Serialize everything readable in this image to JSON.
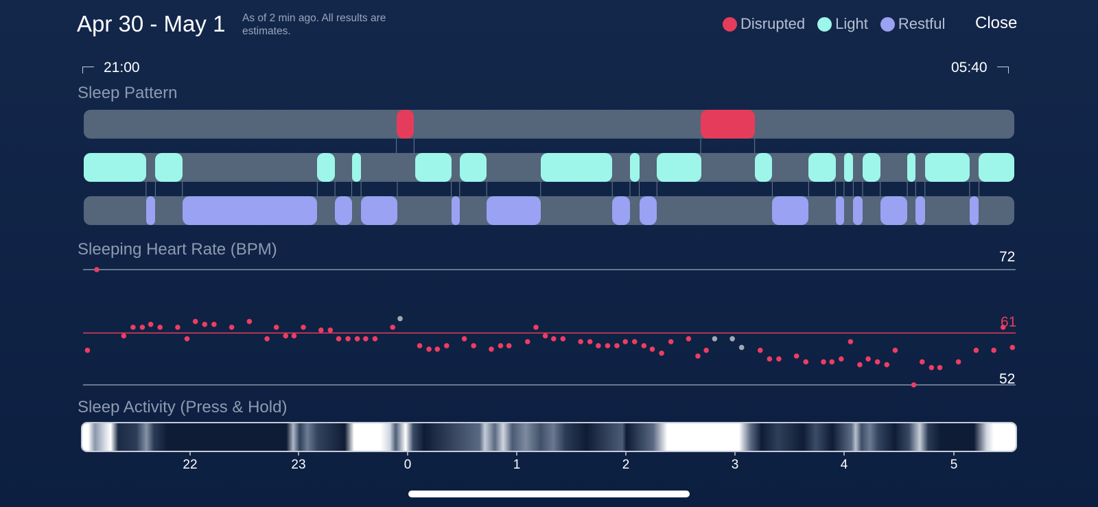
{
  "header": {
    "title": "Apr 30 - May 1",
    "subtitle": "As of 2 min ago. All results are estimates.",
    "close_label": "Close"
  },
  "legend": [
    {
      "label": "Disrupted",
      "color": "#e63c5b"
    },
    {
      "label": "Light",
      "color": "#9df6e9"
    },
    {
      "label": "Restful",
      "color": "#9aa2f3"
    }
  ],
  "timeline": {
    "start": "21:00",
    "end": "05:40"
  },
  "sections": {
    "sleep_pattern": "Sleep Pattern",
    "heart_rate": "Sleeping Heart Rate (BPM)",
    "activity": "Sleep Activity (Press & Hold)"
  },
  "heart_rate": {
    "max": "72",
    "avg": "61",
    "min": "52",
    "avg_color": "#e63c5b"
  },
  "x_axis_ticks": [
    "22",
    "23",
    "0",
    "1",
    "2",
    "3",
    "4",
    "5"
  ],
  "sleep_pattern": {
    "disrupted": [
      [
        0.336,
        0.355
      ],
      [
        0.663,
        0.721
      ]
    ],
    "light": [
      [
        0.0,
        0.067
      ],
      [
        0.077,
        0.106
      ],
      [
        0.251,
        0.27
      ],
      [
        0.288,
        0.298
      ],
      [
        0.356,
        0.395
      ],
      [
        0.404,
        0.433
      ],
      [
        0.491,
        0.568
      ],
      [
        0.587,
        0.597
      ],
      [
        0.616,
        0.664
      ],
      [
        0.721,
        0.74
      ],
      [
        0.779,
        0.808
      ],
      [
        0.817,
        0.827
      ],
      [
        0.837,
        0.856
      ],
      [
        0.885,
        0.894
      ],
      [
        0.904,
        0.952
      ],
      [
        0.962,
        1.0
      ]
    ],
    "restful": [
      [
        0.067,
        0.077
      ],
      [
        0.106,
        0.251
      ],
      [
        0.27,
        0.288
      ],
      [
        0.298,
        0.337
      ],
      [
        0.395,
        0.404
      ],
      [
        0.433,
        0.491
      ],
      [
        0.568,
        0.587
      ],
      [
        0.597,
        0.616
      ],
      [
        0.74,
        0.779
      ],
      [
        0.808,
        0.817
      ],
      [
        0.827,
        0.837
      ],
      [
        0.856,
        0.885
      ],
      [
        0.894,
        0.904
      ],
      [
        0.952,
        0.962
      ]
    ]
  },
  "heart_rate_samples": [
    [
      0.004,
      58
    ],
    [
      0.014,
      72
    ],
    [
      0.043,
      60.5
    ],
    [
      0.053,
      62
    ],
    [
      0.063,
      62
    ],
    [
      0.072,
      62.5
    ],
    [
      0.082,
      62
    ],
    [
      0.101,
      62
    ],
    [
      0.111,
      60
    ],
    [
      0.12,
      63
    ],
    [
      0.13,
      62.5
    ],
    [
      0.14,
      62.5
    ],
    [
      0.159,
      62
    ],
    [
      0.178,
      63
    ],
    [
      0.197,
      60
    ],
    [
      0.207,
      62
    ],
    [
      0.217,
      60.5
    ],
    [
      0.226,
      60.5
    ],
    [
      0.236,
      62
    ],
    [
      0.255,
      61.5
    ],
    [
      0.265,
      61.5
    ],
    [
      0.274,
      60
    ],
    [
      0.284,
      60
    ],
    [
      0.294,
      60
    ],
    [
      0.303,
      60
    ],
    [
      0.313,
      60
    ],
    [
      0.332,
      62
    ],
    [
      0.361,
      58.8
    ],
    [
      0.371,
      58.2
    ],
    [
      0.38,
      58.2
    ],
    [
      0.39,
      58.8
    ],
    [
      0.409,
      60
    ],
    [
      0.419,
      58.8
    ],
    [
      0.438,
      58.2
    ],
    [
      0.448,
      58.8
    ],
    [
      0.457,
      58.8
    ],
    [
      0.477,
      59.5
    ],
    [
      0.486,
      62
    ],
    [
      0.496,
      60.5
    ],
    [
      0.505,
      60
    ],
    [
      0.515,
      60
    ],
    [
      0.534,
      59.5
    ],
    [
      0.544,
      59.5
    ],
    [
      0.553,
      58.8
    ],
    [
      0.563,
      58.8
    ],
    [
      0.573,
      58.8
    ],
    [
      0.582,
      59.5
    ],
    [
      0.592,
      59.5
    ],
    [
      0.602,
      58.8
    ],
    [
      0.611,
      58.2
    ],
    [
      0.621,
      57.5
    ],
    [
      0.631,
      59.5
    ],
    [
      0.65,
      60
    ],
    [
      0.66,
      57
    ],
    [
      0.669,
      58
    ],
    [
      0.727,
      58
    ],
    [
      0.737,
      56.5
    ],
    [
      0.747,
      56.5
    ],
    [
      0.766,
      57
    ],
    [
      0.776,
      56
    ],
    [
      0.795,
      56
    ],
    [
      0.804,
      56
    ],
    [
      0.814,
      56.5
    ],
    [
      0.824,
      59.5
    ],
    [
      0.834,
      55.5
    ],
    [
      0.843,
      56.5
    ],
    [
      0.853,
      56
    ],
    [
      0.863,
      55.5
    ],
    [
      0.872,
      58
    ],
    [
      0.892,
      52
    ],
    [
      0.901,
      56
    ],
    [
      0.911,
      55
    ],
    [
      0.92,
      55
    ],
    [
      0.94,
      56
    ],
    [
      0.959,
      58
    ],
    [
      0.978,
      58
    ],
    [
      0.988,
      62
    ],
    [
      0.998,
      58.5
    ]
  ],
  "heart_rate_samples_gray": [
    [
      0.34,
      63.5
    ],
    [
      0.678,
      60
    ],
    [
      0.697,
      60
    ],
    [
      0.707,
      58.5
    ]
  ],
  "activity_colors": {
    "bright": "#ffffff",
    "dark": "#0f1c35"
  }
}
